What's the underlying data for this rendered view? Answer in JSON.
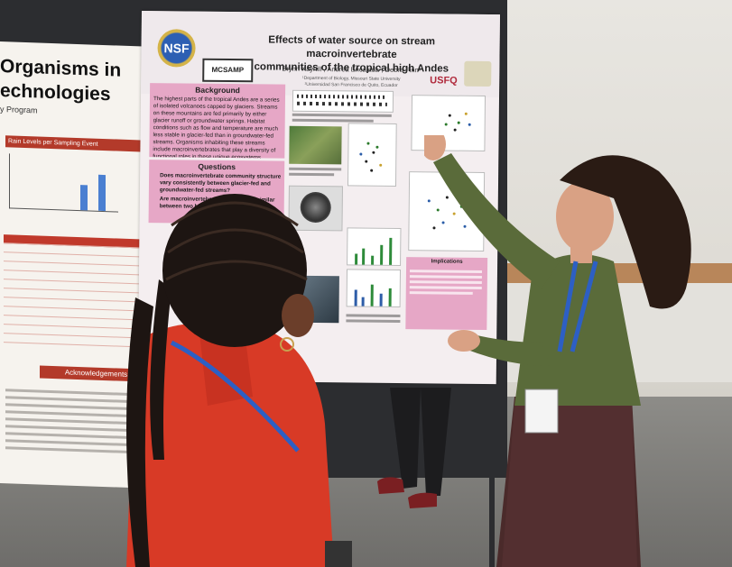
{
  "poster_left": {
    "title_line1": "Organisms in",
    "title_line2": "echnologies",
    "subtitle": "y Program",
    "chart_title": "Rain Levels per Sampling Event",
    "acknowledgements": "Acknowledgements"
  },
  "poster_main": {
    "logo_left": "NSF",
    "logo_mid": "MCSAMP",
    "title_line1": "Effects of water source on stream macroinvertebrate",
    "title_line2": "communities of the tropical high Andes",
    "authors": "Brynn Kayhill¹, Andrea Encalada², Debra Finn¹",
    "affiliation1": "¹Department of Biology, Missouri State University",
    "affiliation2": "²Universidad San Francisco de Quito, Ecuador",
    "logo_right": "USFQ",
    "background_head": "Background",
    "background_text": "The highest parts of the tropical Andes are a series of isolated volcanoes capped by glaciers. Streams on these mountains are fed primarily by either glacier runoff or groundwater springs. Habitat conditions such as flow and temperature are much less stable in glacier-fed than in groundwater-fed streams. Organisms inhabiting these streams include macroinvertebrates that play a diversity of functional roles in these unique ecosystems.",
    "questions_head": "Questions",
    "question1": "Does macroinvertebrate community structure vary consistently between glacier-fed and groundwater-fed streams?",
    "question2": "Are macroinvertebrate communities similar between two high ... valley?",
    "implications_head": "Implications"
  },
  "colors": {
    "poster_pink": "#e6a7c6",
    "left_red": "#b33a2a",
    "board": "#2c2d30",
    "shirt_red": "#d83a26",
    "top_olive": "#5a6b3a"
  }
}
